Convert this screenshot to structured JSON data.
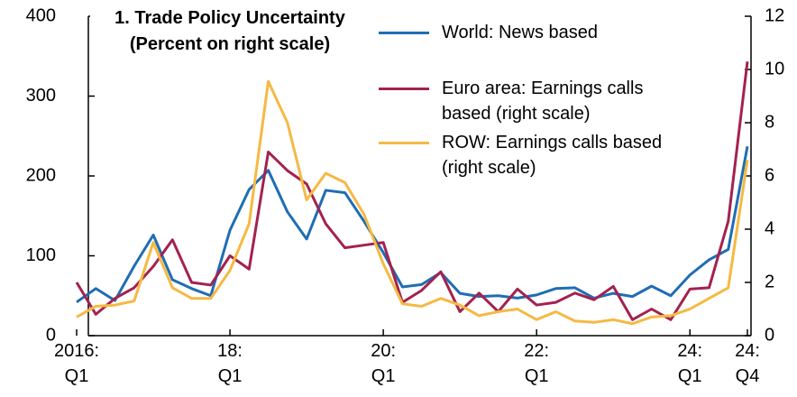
{
  "chart_data": {
    "type": "line",
    "title": "1. Trade Policy Uncertainty",
    "subtitle": "(Percent on right scale)",
    "categories": [
      "2016: Q1",
      null,
      null,
      null,
      null,
      null,
      null,
      null,
      "18: Q1",
      null,
      null,
      null,
      null,
      null,
      null,
      null,
      "20: Q1",
      null,
      null,
      null,
      null,
      null,
      null,
      null,
      "22: Q1",
      null,
      null,
      null,
      null,
      null,
      null,
      null,
      "24: Q1",
      null,
      null,
      "24: Q4"
    ],
    "series": [
      {
        "name": "World: News based",
        "color": "#1f6db5",
        "axis": "y",
        "values": [
          42,
          59,
          44,
          87,
          126,
          70,
          59,
          50,
          132,
          183,
          207,
          155,
          121,
          182,
          179,
          143,
          104,
          61,
          64,
          79,
          53,
          49,
          50,
          47,
          51,
          59,
          60,
          47,
          53,
          49,
          62,
          50,
          76,
          95,
          108,
          237
        ]
      },
      {
        "name": "Euro area: Earnings calls based (right scale)",
        "color": "#a3224f",
        "axis": "y2",
        "values": [
          2.0,
          0.8,
          1.4,
          1.8,
          2.6,
          3.6,
          2.0,
          1.9,
          3.0,
          2.5,
          6.9,
          6.2,
          5.7,
          4.2,
          3.3,
          3.4,
          3.5,
          1.25,
          1.7,
          2.4,
          0.9,
          1.6,
          0.9,
          1.75,
          1.15,
          1.25,
          1.6,
          1.35,
          1.85,
          0.6,
          1.0,
          0.6,
          1.75,
          1.8,
          4.3,
          10.3
        ]
      },
      {
        "name": "ROW: Earnings calls based (right scale)",
        "color": "#f5b942",
        "axis": "y2",
        "values": [
          0.7,
          1.1,
          1.15,
          1.3,
          3.5,
          1.8,
          1.4,
          1.4,
          2.45,
          4.2,
          9.55,
          8.0,
          5.1,
          6.1,
          5.75,
          4.55,
          2.7,
          1.2,
          1.1,
          1.4,
          1.15,
          0.75,
          0.9,
          1.0,
          0.6,
          0.9,
          0.55,
          0.5,
          0.6,
          0.45,
          0.7,
          0.75,
          1.0,
          1.4,
          1.8,
          6.6
        ]
      }
    ],
    "ylim": [
      0,
      400
    ],
    "yticks": [
      0,
      100,
      200,
      300,
      400
    ],
    "y2lim": [
      0,
      12
    ],
    "y2ticks": [
      0,
      2,
      4,
      6,
      8,
      10,
      12
    ]
  }
}
